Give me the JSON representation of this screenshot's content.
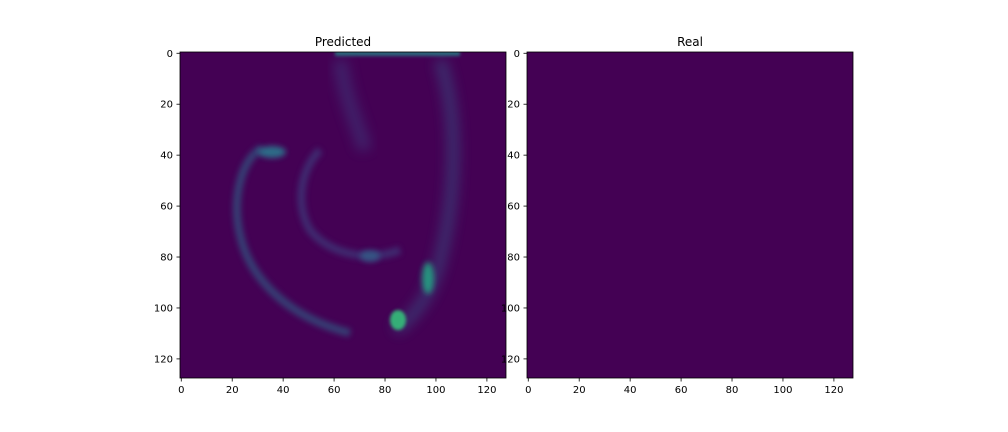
{
  "chart_data": [
    {
      "type": "heatmap",
      "title": "Predicted",
      "xlabel": "",
      "ylabel": "",
      "xlim": [
        0,
        127
      ],
      "ylim": [
        127,
        0
      ],
      "xticks": [
        0,
        20,
        40,
        60,
        80,
        100,
        120
      ],
      "yticks": [
        0,
        20,
        40,
        60,
        80,
        100,
        120
      ],
      "colormap": "viridis",
      "background_color": "#440154",
      "grid": false,
      "approx_features": [
        {
          "desc": "bright streak at top",
          "x": [
            62,
            110
          ],
          "y": 0,
          "intensity": 0.55
        },
        {
          "desc": "left arc",
          "x": [
            20,
            38
          ],
          "y": [
            36,
            80
          ],
          "intensity": 0.4
        },
        {
          "desc": "bright blob lower right",
          "x": 84,
          "y": 106,
          "intensity": 0.85
        },
        {
          "desc": "right edge streak",
          "x": [
            92,
            100
          ],
          "y": [
            80,
            100
          ],
          "intensity": 0.6
        }
      ]
    },
    {
      "type": "heatmap",
      "title": "Real",
      "xlabel": "",
      "ylabel": "",
      "xlim": [
        0,
        127
      ],
      "ylim": [
        127,
        0
      ],
      "xticks": [
        0,
        20,
        40,
        60,
        80,
        100,
        120
      ],
      "yticks": [
        0,
        20,
        40,
        60,
        80,
        100,
        120
      ],
      "colormap": "viridis",
      "background_color": "#440154",
      "grid": false,
      "approx_features": []
    }
  ]
}
